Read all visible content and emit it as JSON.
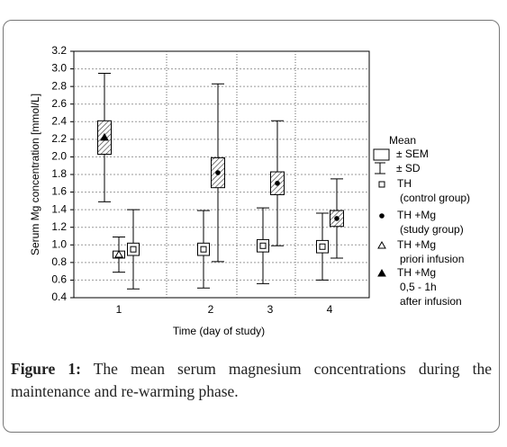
{
  "chart_data": {
    "type": "box",
    "y_label": "Serum Mg concentration [mmol/L]",
    "x_label": "Time  (day of study)",
    "categories": [
      "1",
      "2",
      "3",
      "4"
    ],
    "ylim": [
      0.4,
      3.2
    ],
    "yticks": [
      0.4,
      0.6,
      0.8,
      {
        "value": 1,
        "label": "1.0"
      },
      1.2,
      1.4,
      1.6,
      1.8,
      {
        "value": 2,
        "label": "2.0"
      },
      2.2,
      2.4,
      2.6,
      2.8,
      {
        "value": 3,
        "label": "3.0"
      },
      3.2
    ],
    "grid": true,
    "legend_items": [
      "Mean",
      "± SEM",
      "± SD"
    ],
    "series": [
      {
        "name": "TH\n(control group)",
        "marker": "square",
        "box_fill": "white",
        "values": [
          0.95,
          0.95,
          0.99,
          0.98
        ],
        "sem": [
          0.07,
          0.07,
          0.07,
          0.07
        ],
        "sd": [
          0.45,
          0.44,
          0.43,
          0.38
        ]
      },
      {
        "name": "TH +Mg\n(study group)",
        "marker": "circle",
        "box_fill": "hatched",
        "values": [
          null,
          1.82,
          1.7,
          1.3
        ],
        "sem": [
          null,
          0.17,
          0.13,
          0.09
        ],
        "sd": [
          null,
          1.01,
          0.71,
          0.45
        ]
      },
      {
        "name": "TH +Mg\npriori infusion",
        "marker": "open-triangle",
        "box_fill": "white",
        "values": [
          0.89,
          null,
          null,
          null
        ],
        "sem": [
          0.04,
          null,
          null,
          null
        ],
        "sd": [
          0.2,
          null,
          null,
          null
        ]
      },
      {
        "name": "TH +Mg\n0,5 - 1h\nafter infusion",
        "marker": "filled-triangle",
        "box_fill": "hatched",
        "values": [
          2.22,
          null,
          null,
          null
        ],
        "sem": [
          0.19,
          null,
          null,
          null
        ],
        "sd": [
          0.73,
          null,
          null,
          null
        ]
      }
    ]
  },
  "caption": {
    "label": "Figure 1:",
    "text": "The mean serum magnesium concentrations during the maintenance and re-warming phase."
  }
}
